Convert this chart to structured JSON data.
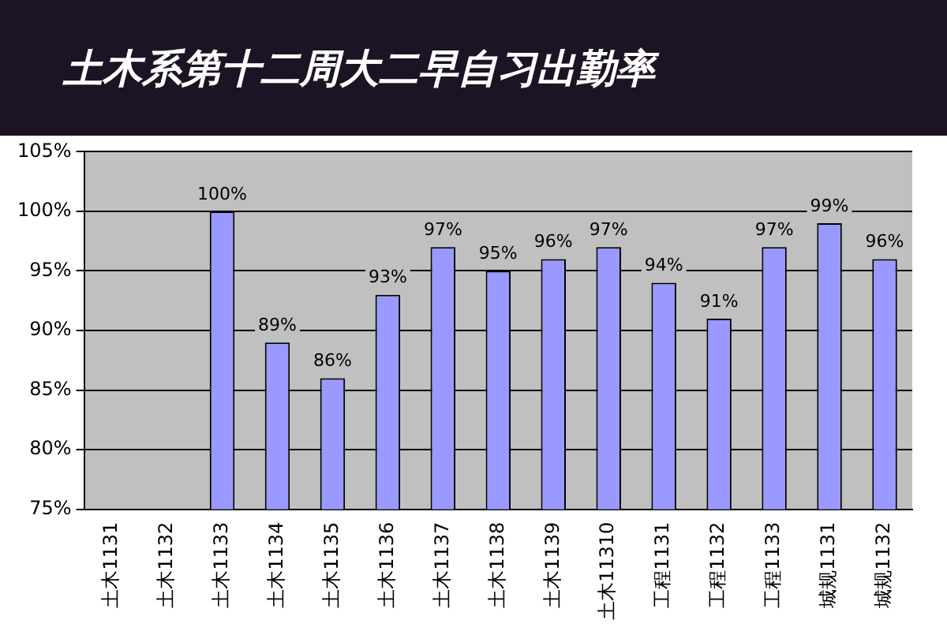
{
  "chart_data": {
    "type": "bar",
    "title": "土木系第十二周大二早自习出勤率",
    "categories": [
      "土木1131",
      "土木1132",
      "土木1133",
      "土木1134",
      "土木1135",
      "土木1136",
      "土木1137",
      "土木1138",
      "土木1139",
      "土木11310",
      "工程1131",
      "工程1132",
      "工程1133",
      "城规1131",
      "城规1132"
    ],
    "values": [
      null,
      null,
      100,
      89,
      86,
      93,
      97,
      95,
      96,
      97,
      94,
      91,
      97,
      99,
      96
    ],
    "value_labels": [
      null,
      null,
      "100%",
      "89%",
      "86%",
      "93%",
      "97%",
      "95%",
      "96%",
      "97%",
      "94%",
      "91%",
      "97%",
      "99%",
      "96%"
    ],
    "color": "#9999ff",
    "ylim": [
      75,
      105
    ],
    "yticks": [
      {
        "value": 75,
        "label": "75%"
      },
      {
        "value": 80,
        "label": "80%"
      },
      {
        "value": 85,
        "label": "85%"
      },
      {
        "value": 90,
        "label": "90%"
      },
      {
        "value": 95,
        "label": "95%"
      },
      {
        "value": 100,
        "label": "100%"
      },
      {
        "value": 105,
        "label": "105%"
      }
    ],
    "grid": "y",
    "legend": false
  }
}
